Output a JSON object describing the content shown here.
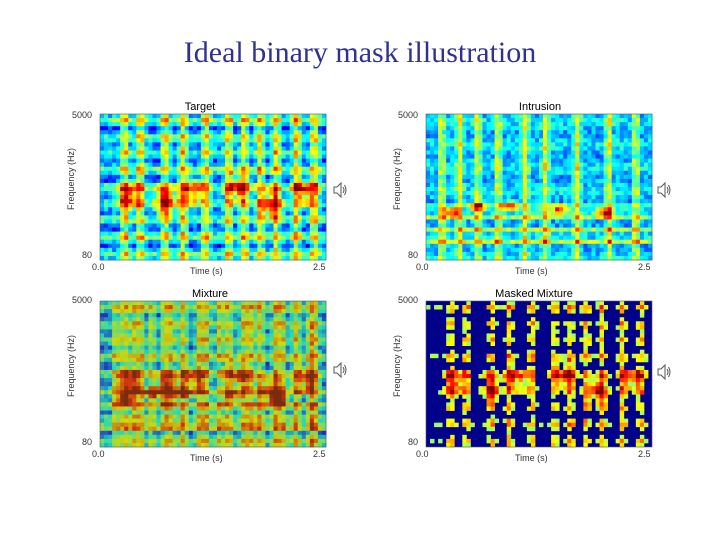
{
  "slide": {
    "title": "Ideal binary mask illustration"
  },
  "icons": {
    "speaker": "speaker-icon"
  },
  "colors": {
    "title": "#2e3192",
    "background": "#ffffff"
  },
  "chart_data": [
    {
      "type": "heatmap",
      "name": "target",
      "title": "Target",
      "xlabel": "Time (s)",
      "ylabel": "Frequency (Hz)",
      "xticks": [
        "0.0",
        "2.5"
      ],
      "yticks": [
        "5000",
        "80"
      ],
      "xlim": [
        0.0,
        2.5
      ],
      "ylim": [
        80,
        5000
      ]
    },
    {
      "type": "heatmap",
      "name": "intrusion",
      "title": "Intrusion",
      "xlabel": "Time (s)",
      "ylabel": "Frequency (Hz)",
      "xticks": [
        "0.0",
        "2.5"
      ],
      "yticks": [
        "5000",
        "80"
      ],
      "xlim": [
        0.0,
        2.5
      ],
      "ylim": [
        80,
        5000
      ]
    },
    {
      "type": "heatmap",
      "name": "mixture",
      "title": "Mixture",
      "xlabel": "Time (s)",
      "ylabel": "Frequency (Hz)",
      "xticks": [
        "0.0",
        "2.5"
      ],
      "yticks": [
        "5000",
        "80"
      ],
      "xlim": [
        0.0,
        2.5
      ],
      "ylim": [
        80,
        5000
      ]
    },
    {
      "type": "heatmap",
      "name": "masked-mixture",
      "title": "Masked Mixture",
      "xlabel": "Time (s)",
      "ylabel": "Frequency (Hz)",
      "xticks": [
        "0.0",
        "2.5"
      ],
      "yticks": [
        "5000",
        "80"
      ],
      "xlim": [
        0.0,
        2.5
      ],
      "ylim": [
        80,
        5000
      ]
    }
  ]
}
